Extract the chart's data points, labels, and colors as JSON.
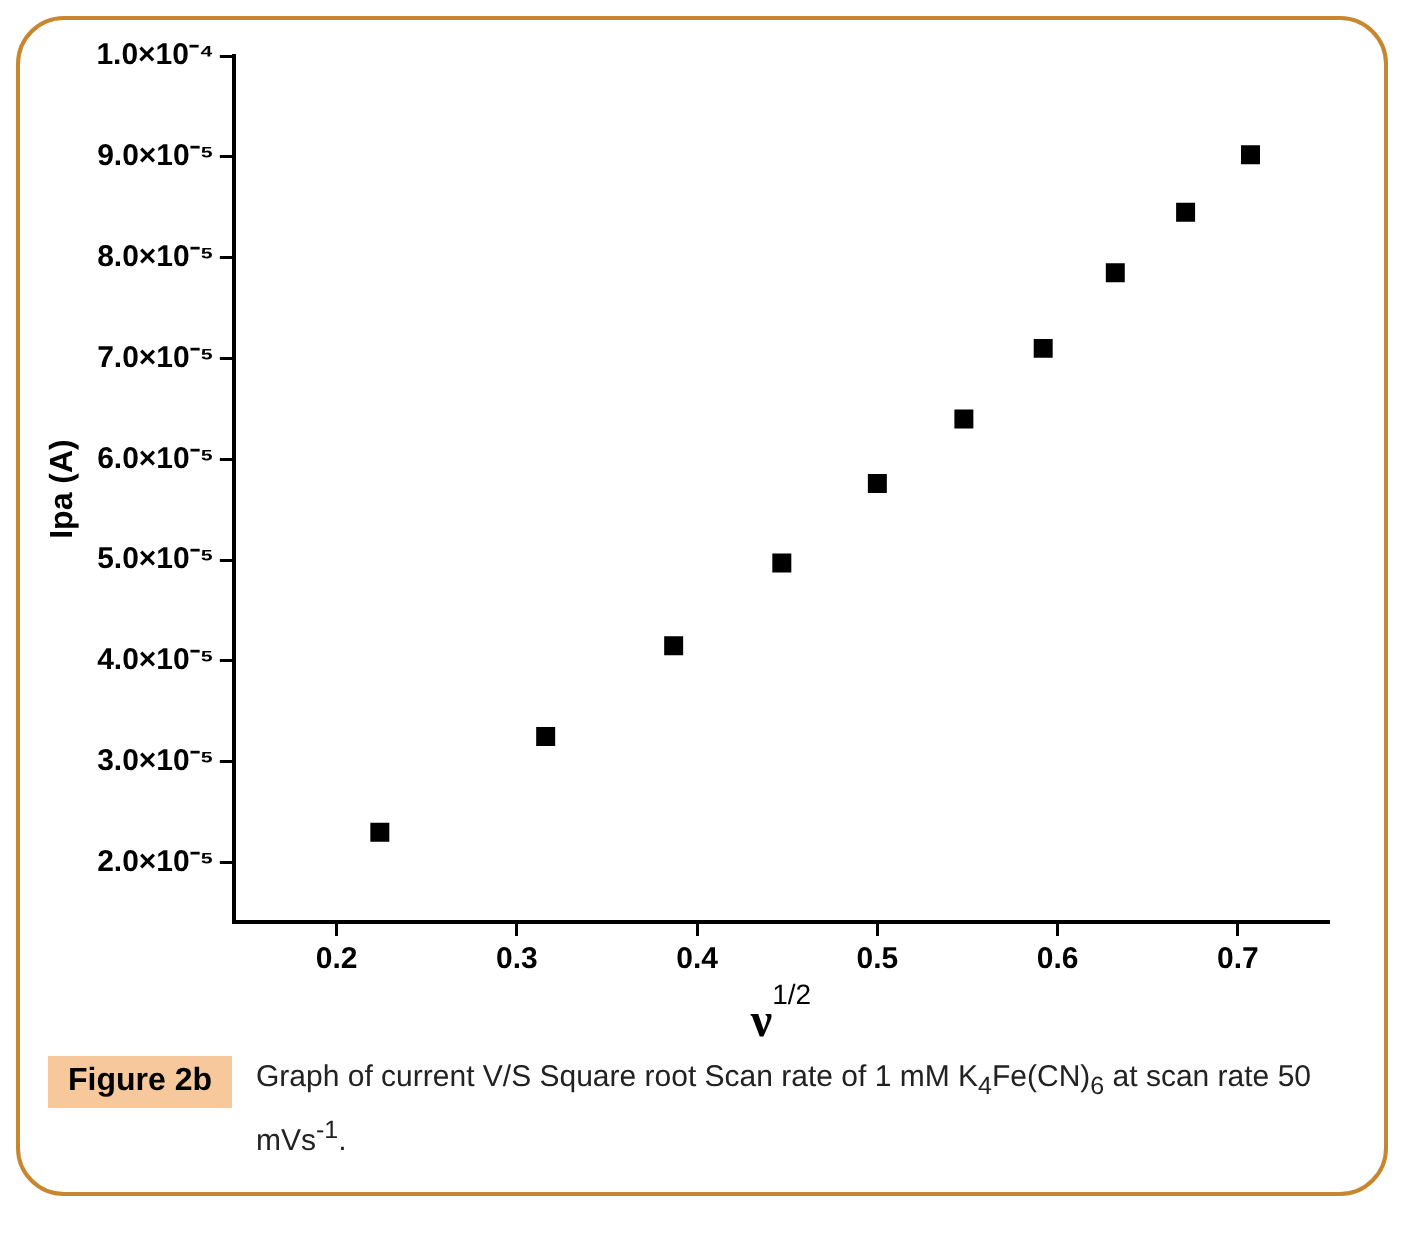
{
  "chart_data": {
    "type": "scatter",
    "ylabel": "Ipa (A)",
    "xlabel": "ν$^{1/2}$",
    "x": [
      0.224,
      0.316,
      0.387,
      0.447,
      0.5,
      0.548,
      0.592,
      0.632,
      0.671,
      0.707
    ],
    "series": [
      {
        "color": "#000000",
        "values": [
          2.3e-05,
          3.25e-05,
          4.15e-05,
          4.97e-05,
          5.76e-05,
          6.4e-05,
          7.1e-05,
          7.85e-05,
          8.45e-05,
          9.02e-05
        ]
      }
    ],
    "xlim": [
      0.143,
      0.75
    ],
    "xticks": [
      0.2,
      0.3,
      0.4,
      0.5,
      0.6,
      0.7
    ],
    "ylim": [
      1.41e-05,
      0.0001
    ],
    "yticks": [
      {
        "value": 2e-05,
        "label": "2.0×10⁻⁵"
      },
      {
        "value": 3e-05,
        "label": "3.0×10⁻⁵"
      },
      {
        "value": 4e-05,
        "label": "4.0×10⁻⁵"
      },
      {
        "value": 5e-05,
        "label": "5.0×10⁻⁵"
      },
      {
        "value": 6e-05,
        "label": "6.0×10⁻⁵"
      },
      {
        "value": 7e-05,
        "label": "7.0×10⁻⁵"
      },
      {
        "value": 8e-05,
        "label": "8.0×10⁻⁵"
      },
      {
        "value": 9e-05,
        "label": "9.0×10⁻⁵"
      },
      {
        "value": 0.0001,
        "label": "1.0×10⁻⁴"
      }
    ],
    "marker": "square",
    "grid": false,
    "legend": false,
    "annotations": [
      "Figure 2b",
      "Graph of current V/S Square root Scan rate of 1 mM K$_{4}$Fe(CN)$_{6}$ at scan rate 50 mVs$^{-1}$."
    ]
  }
}
